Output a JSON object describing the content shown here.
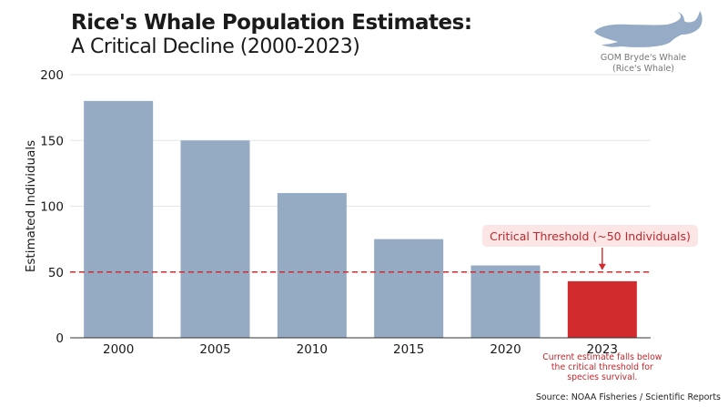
{
  "title": "Rice's Whale Population Estimates:",
  "subtitle": "A Critical Decline (2000-2023)",
  "whale_caption_line1": "GOM Bryde's Whale",
  "whale_caption_line2": "(Rice's Whale)",
  "source": "Source: NOAA Fisheries / Scientific Reports",
  "colors": {
    "bar": "#94abc3",
    "highlight": "#d12b2e",
    "threshold": "#d12b2e",
    "whale": "#96acc6",
    "grid": "#e6e6e6"
  },
  "chart_data": {
    "type": "bar",
    "categories": [
      "2000",
      "2005",
      "2010",
      "2015",
      "2020",
      "2023"
    ],
    "values": [
      180,
      150,
      110,
      75,
      55,
      43
    ],
    "highlight_index": 5,
    "ylabel": "Estimated Individuals",
    "xlabel": "",
    "ylim": [
      0,
      200
    ],
    "yticks": [
      0,
      50,
      100,
      150,
      200
    ],
    "grid": true,
    "threshold": {
      "value": 50,
      "label": "Critical Threshold (~50 Individuals)"
    },
    "note_lines": [
      "Current estimate falls below",
      "the critical threshold for",
      "species survival."
    ]
  }
}
